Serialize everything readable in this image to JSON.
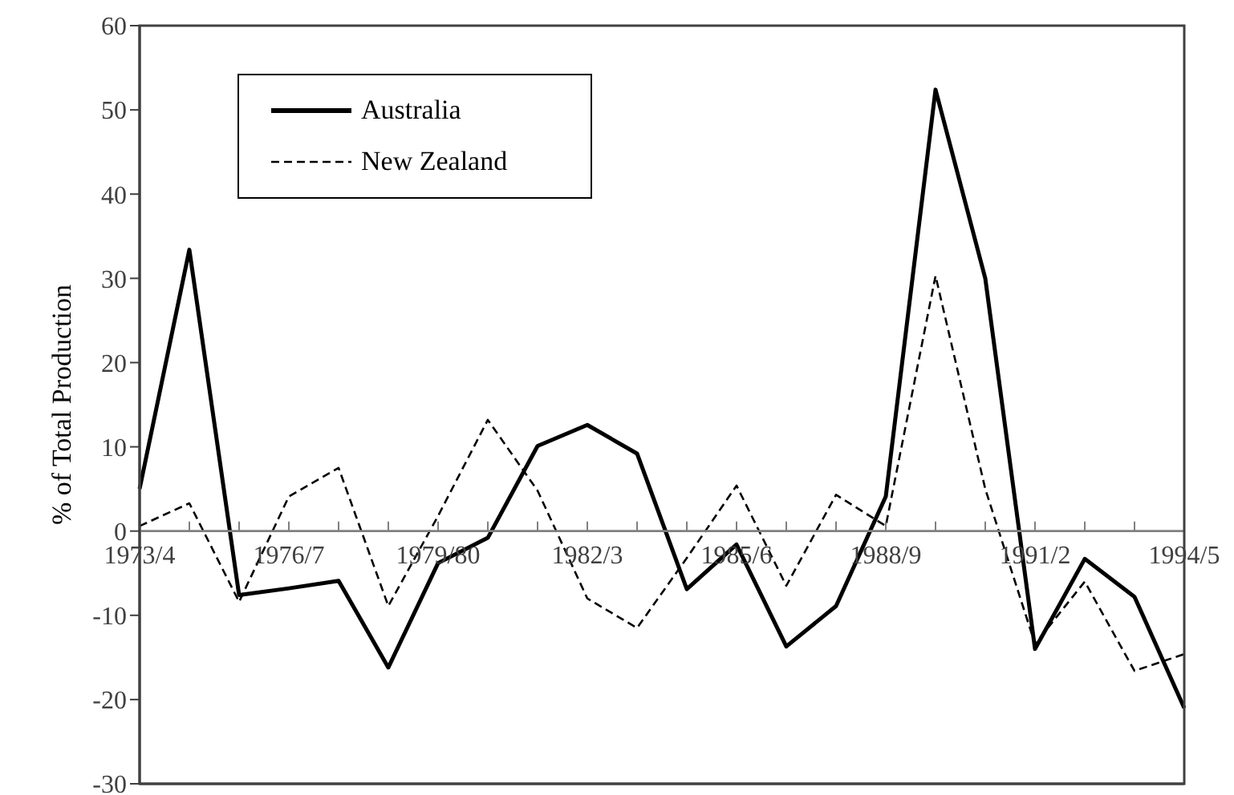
{
  "chart_data": {
    "type": "line",
    "ylabel": "% of Total Production",
    "categories": [
      "1973/4",
      null,
      null,
      "1976/7",
      null,
      null,
      "1979/80",
      null,
      null,
      "1982/3",
      null,
      null,
      "1985/6",
      null,
      null,
      "1988/9",
      null,
      null,
      "1991/2",
      null,
      null,
      "1994/5"
    ],
    "series": [
      {
        "name": "Australia",
        "color": "#000000",
        "line_style": "solid",
        "values": [
          5,
          33.4,
          -7.6,
          -6.8,
          -5.9,
          -16.2,
          -3.8,
          -0.8,
          10.1,
          12.6,
          9.2,
          -6.9,
          -1.6,
          -13.7,
          -8.9,
          4.1,
          52.4,
          30,
          -14,
          -3.3,
          -7.8,
          -21
        ]
      },
      {
        "name": "New Zealand",
        "color": "#000000",
        "line_style": "dashed",
        "values": [
          0.6,
          3.3,
          -8.4,
          4.1,
          7.5,
          -8.9,
          1.8,
          13.2,
          4.8,
          -8,
          -11.5,
          -3.2,
          5.4,
          -6.5,
          4.3,
          0.6,
          30.3,
          5,
          -13.4,
          -6,
          -16.6,
          -14.6
        ]
      }
    ],
    "ylim": [
      -30,
      60
    ],
    "yticks": [
      -30,
      -20,
      -10,
      0,
      10,
      20,
      30,
      40,
      50,
      60
    ],
    "grid": false,
    "legend": "top left",
    "marker": "none"
  }
}
